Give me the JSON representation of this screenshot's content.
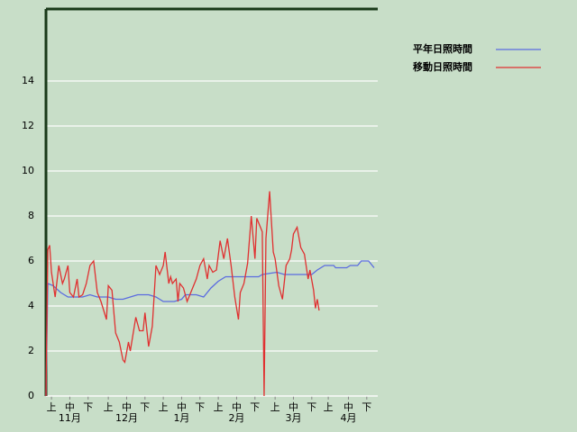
{
  "chart_data": {
    "type": "line",
    "xlim": [
      0,
      181
    ],
    "ylim": [
      0,
      17.2
    ],
    "yticks": [
      0,
      2,
      4,
      6,
      8,
      10,
      12,
      14
    ],
    "xticks": [
      {
        "value": 3,
        "label": "上"
      },
      {
        "value": 13,
        "label": "中"
      },
      {
        "value": 23,
        "label": "下"
      },
      {
        "value": 34,
        "label": "上"
      },
      {
        "value": 44,
        "label": "中"
      },
      {
        "value": 54,
        "label": "下"
      },
      {
        "value": 64,
        "label": "上"
      },
      {
        "value": 74,
        "label": "中"
      },
      {
        "value": 84,
        "label": "下"
      },
      {
        "value": 94,
        "label": "上"
      },
      {
        "value": 104,
        "label": "中"
      },
      {
        "value": 114,
        "label": "下"
      },
      {
        "value": 125,
        "label": "上"
      },
      {
        "value": 135,
        "label": "中"
      },
      {
        "value": 145,
        "label": "下"
      },
      {
        "value": 154,
        "label": "上"
      },
      {
        "value": 165,
        "label": "中"
      },
      {
        "value": 175,
        "label": "下"
      }
    ],
    "month_ticks": [
      {
        "value": 13,
        "label": "11月"
      },
      {
        "value": 44,
        "label": "12月"
      },
      {
        "value": 74,
        "label": "1月"
      },
      {
        "value": 104,
        "label": "2月"
      },
      {
        "value": 135,
        "label": "3月"
      },
      {
        "value": 165,
        "label": "4月"
      }
    ],
    "grid": true,
    "series": [
      {
        "name": "平年日照時間",
        "color": "#5a6be0",
        "x": [
          0,
          1,
          4,
          8,
          12,
          20,
          24,
          28,
          34,
          38,
          42,
          46,
          50,
          56,
          60,
          64,
          70,
          74,
          76,
          82,
          86,
          90,
          94,
          98,
          116,
          118,
          126,
          130,
          145,
          148,
          152,
          157,
          158,
          164,
          166,
          170,
          172,
          176,
          178,
          179
        ],
        "values": [
          0,
          5.0,
          4.9,
          4.6,
          4.4,
          4.4,
          4.5,
          4.4,
          4.4,
          4.3,
          4.3,
          4.4,
          4.5,
          4.5,
          4.4,
          4.2,
          4.2,
          4.3,
          4.5,
          4.5,
          4.4,
          4.8,
          5.1,
          5.3,
          5.3,
          5.4,
          5.5,
          5.4,
          5.4,
          5.6,
          5.8,
          5.8,
          5.7,
          5.7,
          5.8,
          5.8,
          6.0,
          6.0,
          5.8,
          5.7
        ]
      },
      {
        "name": "移動日照時間",
        "color": "#e03030",
        "x": [
          0,
          1,
          2,
          3,
          5,
          7,
          9,
          10,
          12,
          13,
          15,
          17,
          18,
          20,
          22,
          24,
          26,
          28,
          30,
          33,
          34,
          36,
          38,
          40,
          42,
          43,
          45,
          46,
          49,
          51,
          53,
          54,
          56,
          58,
          60,
          62,
          64,
          65,
          67,
          68,
          69,
          71,
          72,
          73,
          75,
          77,
          78,
          80,
          82,
          84,
          86,
          88,
          89,
          91,
          93,
          95,
          97,
          99,
          101,
          103,
          105,
          106,
          108,
          110,
          112,
          114,
          115,
          118,
          119,
          120,
          122,
          124,
          125,
          127,
          129,
          131,
          133,
          134,
          135,
          137,
          139,
          141,
          143,
          144,
          146,
          147,
          148,
          149
        ],
        "values": [
          0,
          6.5,
          6.7,
          5.5,
          4.4,
          5.8,
          5.0,
          5.2,
          5.8,
          4.6,
          4.4,
          5.2,
          4.4,
          4.5,
          5.0,
          5.8,
          6.0,
          4.6,
          4.2,
          3.4,
          4.9,
          4.7,
          2.8,
          2.4,
          1.6,
          1.5,
          2.4,
          2.0,
          3.5,
          2.9,
          2.9,
          3.7,
          2.2,
          3.1,
          5.8,
          5.4,
          5.8,
          6.4,
          5.0,
          5.3,
          5.0,
          5.2,
          4.2,
          5.0,
          4.8,
          4.2,
          4.4,
          4.8,
          5.2,
          5.8,
          6.1,
          5.2,
          5.8,
          5.5,
          5.6,
          6.9,
          6.1,
          7.0,
          5.8,
          4.4,
          3.4,
          4.6,
          5.0,
          5.9,
          8.0,
          6.1,
          7.9,
          7.3,
          0,
          7.0,
          9.1,
          6.4,
          6.1,
          4.9,
          4.3,
          5.8,
          6.1,
          6.5,
          7.2,
          7.5,
          6.6,
          6.3,
          5.2,
          5.6,
          4.7,
          3.9,
          4.3,
          3.8
        ]
      }
    ]
  }
}
